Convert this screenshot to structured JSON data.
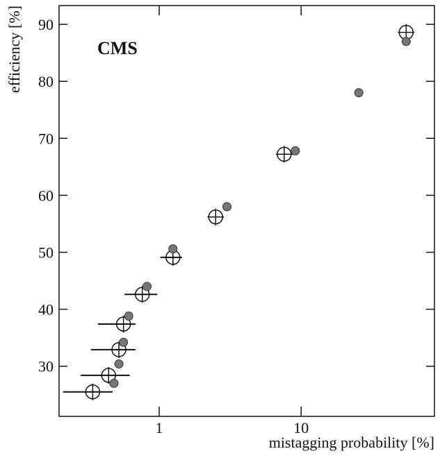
{
  "chart_data": {
    "type": "scatter",
    "annotation": "CMS",
    "x_label": "mistagging probability [%]",
    "y_label": "efficiency [%]",
    "xlim": [
      0.197,
      87
    ],
    "ylim": [
      21.2,
      93.3
    ],
    "xscale": "log",
    "xticks": [
      1,
      10
    ],
    "yticks": [
      30,
      40,
      50,
      60,
      70,
      80,
      90
    ],
    "series": [
      {
        "marker": "open-cross",
        "color": "#111111",
        "x": [
          0.34,
          0.44,
          0.52,
          0.56,
          0.76,
          1.25,
          2.5,
          7.6,
          55
        ],
        "values": [
          25.5,
          28.4,
          32.9,
          37.4,
          42.6,
          49.1,
          56.2,
          67.2,
          88.6
        ],
        "x_low": [
          0.21,
          0.28,
          0.33,
          0.37,
          0.57,
          1.02,
          null,
          null,
          null
        ],
        "x_high": [
          0.47,
          0.62,
          0.68,
          0.68,
          0.97,
          1.45,
          null,
          null,
          null
        ]
      },
      {
        "marker": "gray-dot",
        "color": "#777777",
        "x": [
          0.48,
          0.52,
          0.56,
          0.61,
          0.82,
          1.25,
          3.0,
          9.1,
          25.5,
          55
        ],
        "values": [
          27.0,
          30.4,
          34.2,
          38.8,
          44.0,
          50.6,
          58.0,
          67.8,
          78.0,
          87.0
        ]
      }
    ]
  }
}
